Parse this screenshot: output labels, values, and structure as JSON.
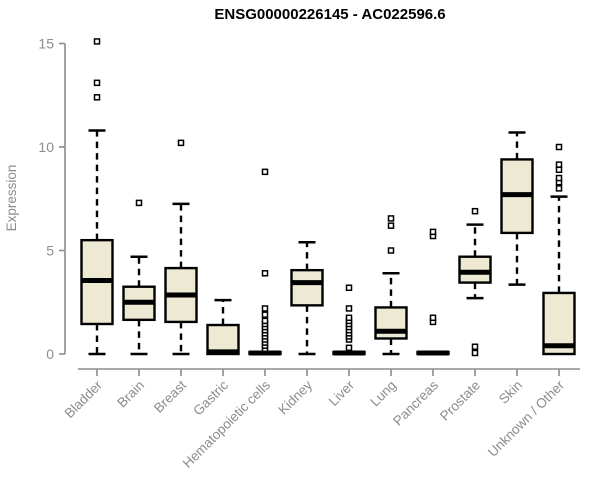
{
  "title": "ENSG00000226145 - AC022596.6",
  "chart_data": {
    "type": "boxplot",
    "title": "ENSG00000226145 - AC022596.6",
    "ylabel": "Expression",
    "xlabel": "",
    "ylim": [
      0,
      15
    ],
    "yticks": [
      0,
      5,
      10,
      15
    ],
    "grid": false,
    "legend": "none",
    "box_fill_color": "#EDE9D2",
    "box_border_color": "#000000",
    "median_color": "#000000",
    "whisker_color": "#000000",
    "outlier_fill_color": "#FFFFFF",
    "axis_color": "#8C8C8C",
    "label_color": "#8C8C8C",
    "title_color": "#000000",
    "categories": [
      "Bladder",
      "Brain",
      "Breast",
      "Gastric",
      "Hematopoietic cells",
      "Kidney",
      "Liver",
      "Lung",
      "Pancreas",
      "Prostate",
      "Skin",
      "Unknown / Other"
    ],
    "series": [
      {
        "category": "Bladder",
        "whisker_low": 0,
        "q1": 1.45,
        "median": 3.55,
        "q3": 5.5,
        "whisker_high": 10.8,
        "outliers": [
          12.4,
          13.1,
          15.1
        ]
      },
      {
        "category": "Brain",
        "whisker_low": 0,
        "q1": 1.65,
        "median": 2.5,
        "q3": 3.25,
        "whisker_high": 4.7,
        "outliers": [
          7.3
        ]
      },
      {
        "category": "Breast",
        "whisker_low": 0,
        "q1": 1.55,
        "median": 2.85,
        "q3": 4.15,
        "whisker_high": 7.25,
        "outliers": [
          10.2
        ]
      },
      {
        "category": "Gastric",
        "whisker_low": 0,
        "q1": 0,
        "median": 0.1,
        "q3": 1.4,
        "whisker_high": 2.6,
        "outliers": []
      },
      {
        "category": "Hematopoietic cells",
        "whisker_low": 0,
        "q1": 0,
        "median": 0.05,
        "q3": 0.1,
        "whisker_high": 0.1,
        "outliers": [
          0.25,
          0.4,
          0.55,
          0.7,
          0.85,
          1.0,
          1.15,
          1.3,
          1.45,
          1.6,
          1.9,
          2.2,
          3.9,
          8.8
        ]
      },
      {
        "category": "Kidney",
        "whisker_low": 0,
        "q1": 2.35,
        "median": 3.45,
        "q3": 4.05,
        "whisker_high": 5.4,
        "outliers": []
      },
      {
        "category": "Liver",
        "whisker_low": 0,
        "q1": 0,
        "median": 0.05,
        "q3": 0.1,
        "whisker_high": 0.1,
        "outliers": [
          0.3,
          0.7,
          0.85,
          1.0,
          1.15,
          1.3,
          1.45,
          1.6,
          1.75,
          2.2,
          3.2
        ]
      },
      {
        "category": "Lung",
        "whisker_low": 0,
        "q1": 0.75,
        "median": 1.1,
        "q3": 2.25,
        "whisker_high": 3.9,
        "outliers": [
          5.0,
          6.2,
          6.55
        ]
      },
      {
        "category": "Pancreas",
        "whisker_low": 0,
        "q1": 0,
        "median": 0.05,
        "q3": 0.1,
        "whisker_high": 0.1,
        "outliers": [
          1.55,
          1.75,
          5.7,
          5.9
        ]
      },
      {
        "category": "Prostate",
        "whisker_low": 2.7,
        "q1": 3.45,
        "median": 3.95,
        "q3": 4.7,
        "whisker_high": 6.25,
        "outliers": [
          0.05,
          0.35,
          6.9
        ]
      },
      {
        "category": "Skin",
        "whisker_low": 3.35,
        "q1": 5.85,
        "median": 7.7,
        "q3": 9.4,
        "whisker_high": 10.7,
        "outliers": []
      },
      {
        "category": "Unknown / Other",
        "whisker_low": 0,
        "q1": 0,
        "median": 0.4,
        "q3": 2.95,
        "whisker_high": 7.6,
        "outliers": [
          8.0,
          8.3,
          8.5,
          8.9,
          9.15,
          10.0
        ]
      }
    ]
  }
}
